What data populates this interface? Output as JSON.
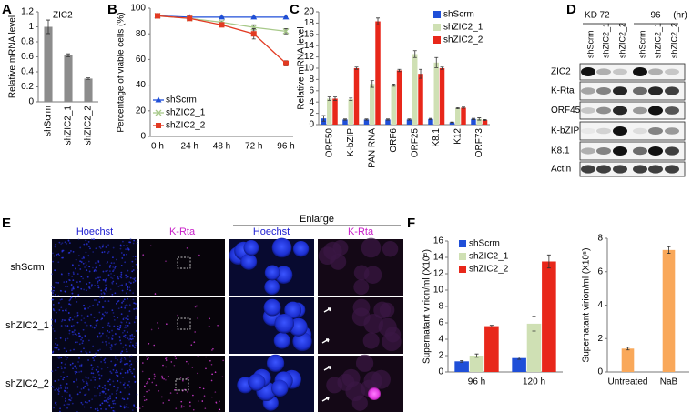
{
  "chart_data": [
    {
      "type": "bar",
      "panel": "A",
      "title": "ZIC2",
      "ylabel": "Relative mRNA level",
      "categories": [
        "shScrm",
        "shZIC2_1",
        "shZIC2_2"
      ],
      "values": [
        1.0,
        0.62,
        0.31
      ],
      "errors": [
        0.09,
        0.02,
        0.01
      ],
      "color": "#8c8c8c",
      "ylim": [
        0,
        1.2
      ],
      "yticks": [
        0,
        0.2,
        0.4,
        0.6,
        0.8,
        1,
        1.2
      ]
    },
    {
      "type": "line",
      "panel": "B",
      "ylabel": "Percentage of viable cells (%)",
      "categories": [
        "0 h",
        "24 h",
        "48 h",
        "72 h",
        "96 h"
      ],
      "series": [
        {
          "name": "shScrm",
          "color": "#1f4fd8",
          "marker": "triangle",
          "values": [
            94,
            93,
            93,
            93,
            93
          ],
          "errors": [
            0.5,
            0.5,
            0.5,
            0.5,
            0.5
          ]
        },
        {
          "name": "shZIC2_1",
          "color": "#a8c98a",
          "marker": "cross",
          "values": [
            94,
            92,
            89,
            85,
            82
          ],
          "errors": [
            0.5,
            0.5,
            1,
            2,
            2
          ]
        },
        {
          "name": "shZIC2_2",
          "color": "#e23a22",
          "marker": "square",
          "values": [
            94,
            92,
            87,
            80,
            57
          ],
          "errors": [
            0.5,
            0.5,
            1,
            4,
            2
          ]
        }
      ],
      "ylim": [
        0,
        100
      ],
      "yticks": [
        0,
        20,
        40,
        60,
        80,
        100
      ],
      "legend": "lower left"
    },
    {
      "type": "bar",
      "panel": "C",
      "ylabel": "Relative mRNA level",
      "categories": [
        "ORF50",
        "K-bZIP",
        "PAN RNA",
        "ORF6",
        "ORF25",
        "K8.1",
        "K12",
        "ORF73"
      ],
      "series": [
        {
          "name": "shScrm",
          "color": "#1f4fd8",
          "values": [
            1.1,
            0.9,
            0.9,
            0.9,
            0.9,
            1.0,
            0.4,
            1.0
          ],
          "errors": [
            0.5,
            0.1,
            0.1,
            0.1,
            0.1,
            0.1,
            0.05,
            0.1
          ]
        },
        {
          "name": "shZIC2_1",
          "color": "#cfe0b4",
          "values": [
            4.6,
            4.5,
            7.2,
            7.0,
            12.5,
            11.0,
            2.9,
            1.0
          ],
          "errors": [
            0.3,
            0.2,
            0.6,
            0.2,
            0.6,
            0.9,
            0.1,
            0.2
          ]
        },
        {
          "name": "shZIC2_2",
          "color": "#e8271a",
          "values": [
            4.6,
            10.0,
            18.3,
            9.6,
            9.0,
            10.0,
            3.0,
            0.8
          ],
          "errors": [
            0.3,
            0.2,
            0.6,
            0.2,
            0.8,
            0.2,
            0.1,
            0.1
          ]
        }
      ],
      "ylim": [
        0,
        20
      ],
      "yticks": [
        0,
        2,
        4,
        6,
        8,
        10,
        12,
        14,
        16,
        18,
        20
      ],
      "legend": "upper right"
    },
    {
      "type": "bar",
      "panel": "F",
      "ylabel": "Supernatant virion/ml (X10⁵)",
      "categories": [
        "96 h",
        "120 h"
      ],
      "series": [
        {
          "name": "shScrm",
          "color": "#1f4fd8",
          "values": [
            1.3,
            1.7
          ],
          "errors": [
            0.1,
            0.15
          ]
        },
        {
          "name": "shZIC2_1",
          "color": "#cfe0b4",
          "values": [
            2.0,
            5.9
          ],
          "errors": [
            0.2,
            0.9
          ]
        },
        {
          "name": "shZIC2_2",
          "color": "#e8271a",
          "values": [
            5.6,
            13.5
          ],
          "errors": [
            0.1,
            0.8
          ]
        }
      ],
      "ylim": [
        0,
        16
      ],
      "yticks": [
        0,
        2,
        4,
        6,
        8,
        10,
        12,
        14,
        16
      ],
      "legend": "upper left"
    },
    {
      "type": "bar",
      "ylabel": "Supernatant virion/ml (X10⁵)",
      "categories": [
        "Untreated",
        "NaB"
      ],
      "values": [
        1.4,
        7.3
      ],
      "errors": [
        0.08,
        0.2
      ],
      "color": "#f9a85a",
      "ylim": [
        0,
        8
      ],
      "yticks": [
        0,
        2,
        4,
        6,
        8
      ]
    }
  ],
  "blot": {
    "panel": "D",
    "kd_label": "KD",
    "time_labels": [
      "72",
      "96"
    ],
    "time_unit": "(hr)",
    "lanes": [
      "shScrm",
      "shZIC2_1",
      "shZIC2_2",
      "shScrm",
      "shZIC2_1",
      "shZIC2_2"
    ],
    "rows": [
      "ZIC2",
      "K-Rta",
      "ORF45",
      "K-bZIP",
      "K8.1",
      "Actin"
    ]
  },
  "microscopy": {
    "panel": "E",
    "columns": [
      "Hoechst",
      "K-Rta",
      "Hoechst",
      "K-Rta"
    ],
    "enlarge_label": "Enlarge",
    "rows": [
      "shScrm",
      "shZIC2_1",
      "shZIC2_2"
    ]
  }
}
